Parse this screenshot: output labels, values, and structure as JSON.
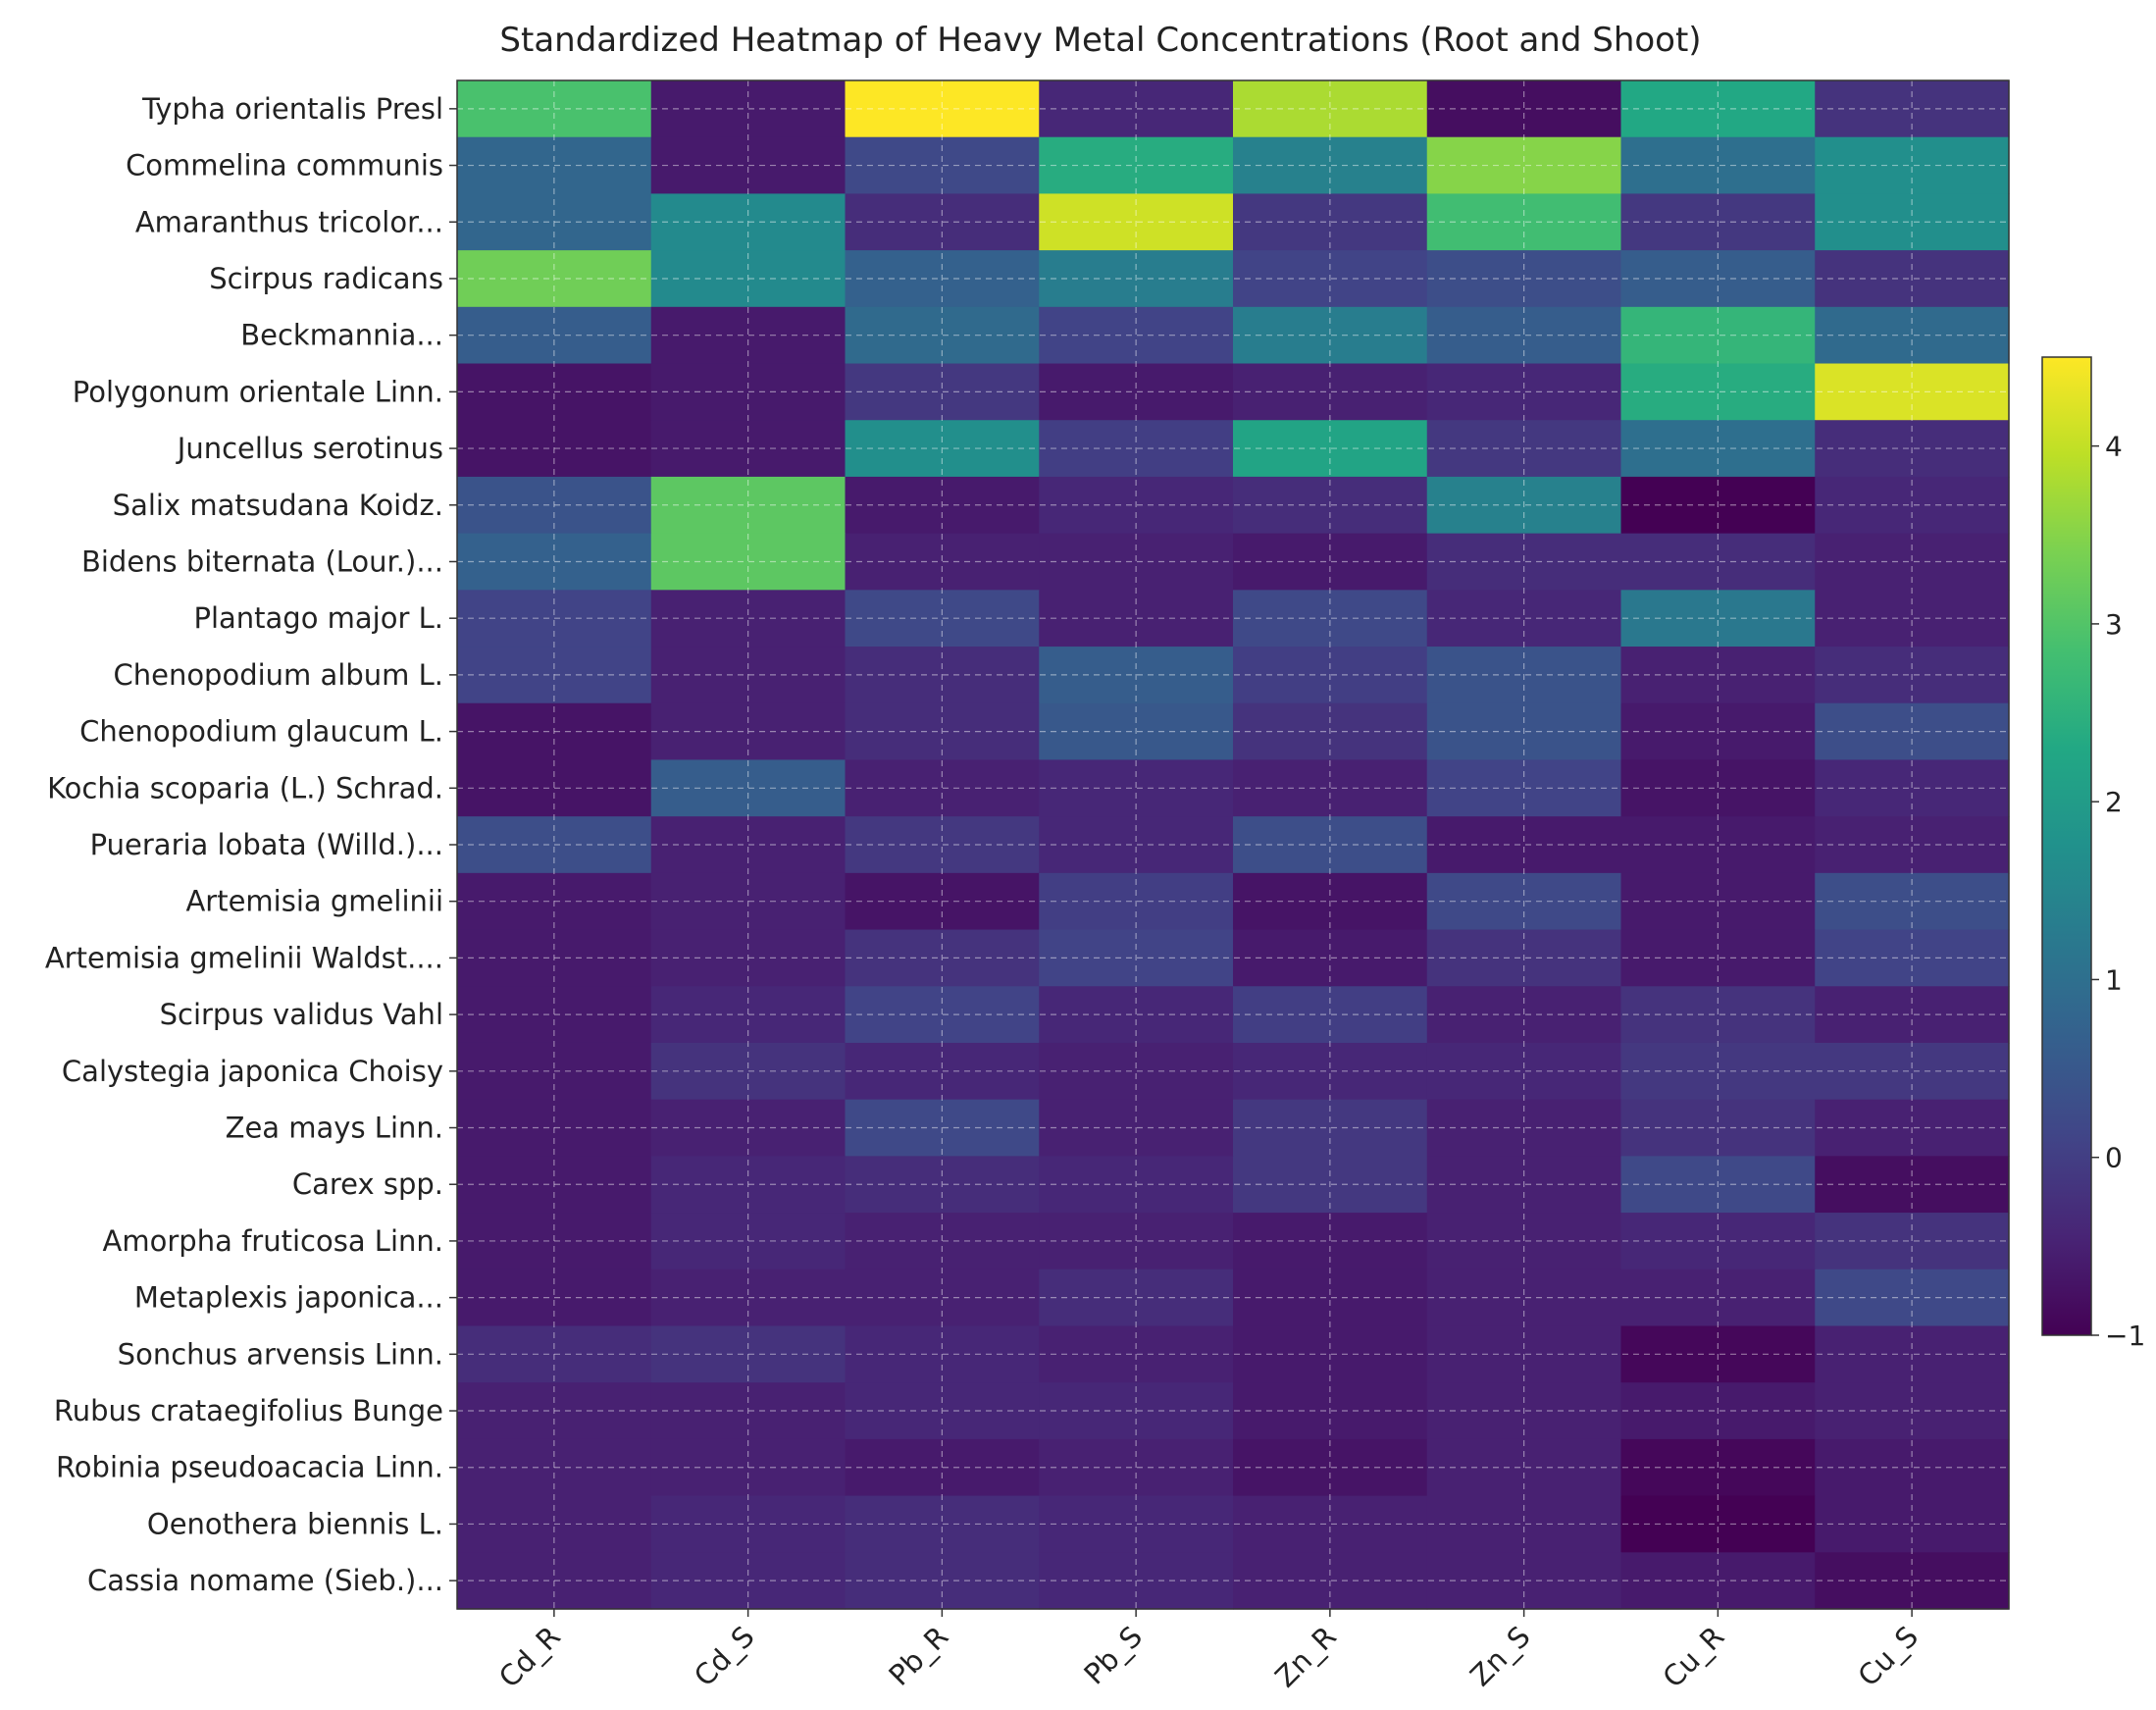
{
  "chart_data": {
    "type": "heatmap",
    "title": "Standardized Heatmap of Heavy Metal Concentrations (Root and Shoot)",
    "xlabel": "",
    "ylabel": "",
    "columns": [
      "Cd_R",
      "Cd_S",
      "Pb_R",
      "Pb_S",
      "Zn_R",
      "Zn_S",
      "Cu_R",
      "Cu_S"
    ],
    "rows": [
      "Typha orientalis Presl",
      "Commelina communis",
      "Amaranthus tricolor...",
      "Scirpus radicans",
      "Beckmannia...",
      "Polygonum orientale Linn.",
      "Juncellus serotinus",
      "Salix matsudana Koidz.",
      "Bidens biternata (Lour.)...",
      "Plantago major L.",
      "Chenopodium album L.",
      "Chenopodium glaucum L.",
      "Kochia scoparia (L.) Schrad.",
      "Pueraria lobata (Willd.)...",
      "Artemisia gmelinii",
      "Artemisia gmelinii Waldst....",
      "Scirpus validus Vahl",
      "Calystegia japonica Choisy",
      "Zea mays Linn.",
      "Carex spp.",
      "Amorpha fruticosa Linn.",
      "Metaplexis japonica...",
      "Sonchus arvensis Linn.",
      "Rubus crataegifolius Bunge",
      "Robinia pseudoacacia Linn.",
      "Oenothera biennis L.",
      "Cassia nomame (Sieb.)..."
    ],
    "values": [
      [
        2.9,
        -0.6,
        4.5,
        -0.4,
        3.8,
        -0.8,
        2.3,
        -0.2
      ],
      [
        0.8,
        -0.6,
        0.2,
        2.4,
        1.4,
        3.5,
        1.0,
        1.7
      ],
      [
        0.8,
        1.6,
        -0.3,
        4.1,
        -0.1,
        2.8,
        -0.1,
        1.7
      ],
      [
        3.3,
        1.6,
        0.7,
        1.3,
        0.1,
        0.3,
        0.6,
        -0.2
      ],
      [
        0.6,
        -0.6,
        0.9,
        0.1,
        1.3,
        0.6,
        2.6,
        0.9
      ],
      [
        -0.7,
        -0.6,
        -0.1,
        -0.6,
        -0.5,
        -0.4,
        2.4,
        4.2
      ],
      [
        -0.7,
        -0.6,
        1.7,
        0.0,
        2.2,
        -0.1,
        1.0,
        -0.3
      ],
      [
        0.4,
        3.1,
        -0.6,
        -0.4,
        -0.3,
        1.4,
        -1.0,
        -0.4
      ],
      [
        0.7,
        3.1,
        -0.5,
        -0.5,
        -0.6,
        -0.3,
        -0.3,
        -0.5
      ],
      [
        0.1,
        -0.5,
        0.2,
        -0.5,
        0.2,
        -0.4,
        1.2,
        -0.5
      ],
      [
        0.1,
        -0.5,
        -0.3,
        0.6,
        0.0,
        0.4,
        -0.5,
        -0.3
      ],
      [
        -0.7,
        -0.5,
        -0.3,
        0.5,
        -0.2,
        0.4,
        -0.6,
        0.3
      ],
      [
        -0.7,
        0.6,
        -0.5,
        -0.4,
        -0.5,
        0.1,
        -0.7,
        -0.4
      ],
      [
        0.3,
        -0.5,
        -0.1,
        -0.4,
        0.3,
        -0.6,
        -0.6,
        -0.5
      ],
      [
        -0.6,
        -0.5,
        -0.7,
        0.0,
        -0.7,
        0.2,
        -0.6,
        0.3
      ],
      [
        -0.6,
        -0.5,
        -0.2,
        0.1,
        -0.6,
        -0.2,
        -0.6,
        0.1
      ],
      [
        -0.6,
        -0.4,
        0.1,
        -0.4,
        0.0,
        -0.5,
        -0.2,
        -0.5
      ],
      [
        -0.6,
        -0.2,
        -0.4,
        -0.5,
        -0.4,
        -0.4,
        -0.1,
        -0.1
      ],
      [
        -0.6,
        -0.5,
        0.2,
        -0.5,
        -0.1,
        -0.5,
        -0.2,
        -0.5
      ],
      [
        -0.6,
        -0.4,
        -0.3,
        -0.4,
        -0.1,
        -0.5,
        0.2,
        -0.8
      ],
      [
        -0.6,
        -0.4,
        -0.5,
        -0.5,
        -0.6,
        -0.5,
        -0.4,
        -0.2
      ],
      [
        -0.6,
        -0.5,
        -0.5,
        -0.3,
        -0.6,
        -0.5,
        -0.5,
        0.2
      ],
      [
        -0.3,
        -0.2,
        -0.4,
        -0.5,
        -0.6,
        -0.5,
        -0.9,
        -0.5
      ],
      [
        -0.5,
        -0.5,
        -0.4,
        -0.4,
        -0.6,
        -0.5,
        -0.6,
        -0.5
      ],
      [
        -0.5,
        -0.5,
        -0.6,
        -0.5,
        -0.7,
        -0.5,
        -0.9,
        -0.6
      ],
      [
        -0.5,
        -0.4,
        -0.3,
        -0.4,
        -0.5,
        -0.5,
        -1.0,
        -0.6
      ],
      [
        -0.5,
        -0.4,
        -0.3,
        -0.4,
        -0.5,
        -0.5,
        -0.6,
        -0.8
      ]
    ],
    "colorbar": {
      "colormap": "viridis",
      "min": -1,
      "max": 4.5,
      "ticks": [
        -1,
        0,
        1,
        2,
        3,
        4
      ]
    },
    "grid": true,
    "legend": "right"
  }
}
